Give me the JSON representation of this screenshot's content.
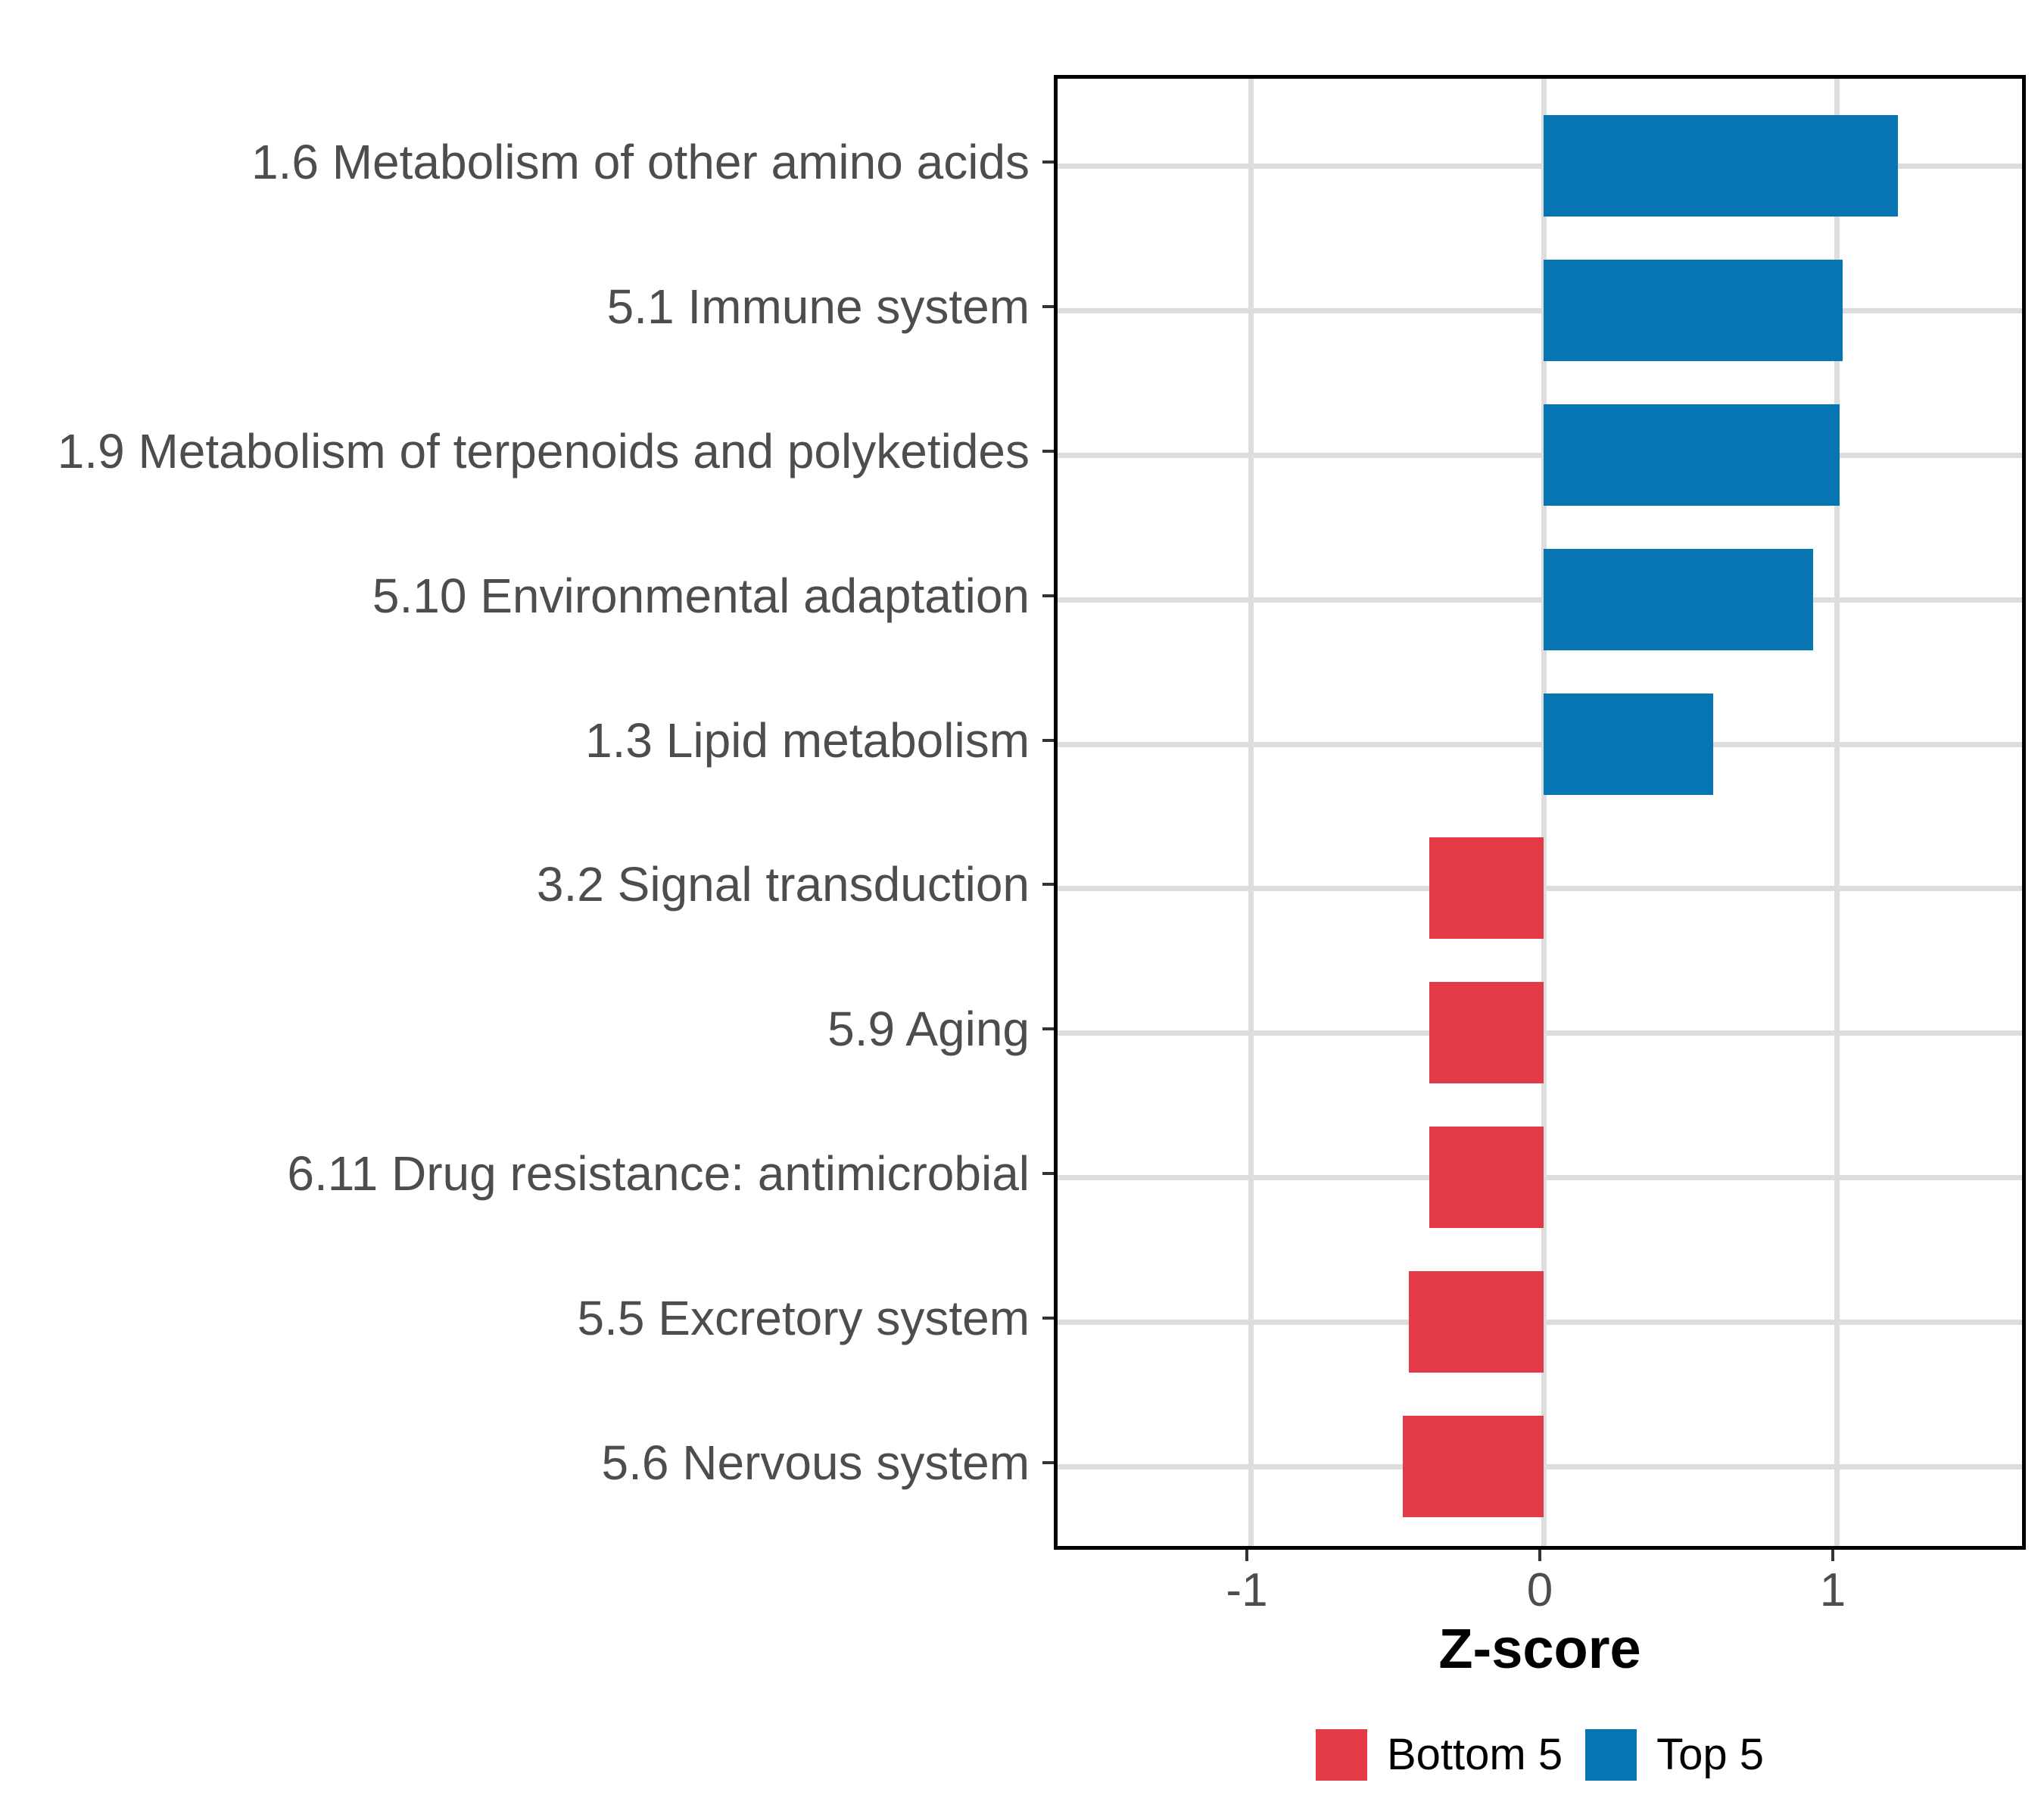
{
  "chart_data": {
    "type": "bar",
    "orientation": "horizontal",
    "title": "",
    "xlabel": "Z-score",
    "ylabel": "",
    "categories": [
      "1.6 Metabolism of other amino acids",
      "5.1 Immune system",
      "1.9 Metabolism of terpenoids and polyketides",
      "5.10 Environmental adaptation",
      "1.3 Lipid metabolism",
      "3.2 Signal transduction",
      "5.9 Aging",
      "6.11 Drug resistance: antimicrobial",
      "5.5 Excretory system",
      "5.6 Nervous system"
    ],
    "values": [
      1.21,
      1.02,
      1.01,
      0.92,
      0.58,
      -0.39,
      -0.39,
      -0.39,
      -0.46,
      -0.48
    ],
    "groups": [
      "Top 5",
      "Top 5",
      "Top 5",
      "Top 5",
      "Top 5",
      "Bottom 5",
      "Bottom 5",
      "Bottom 5",
      "Bottom 5",
      "Bottom 5"
    ],
    "x_ticks": [
      {
        "value": -1,
        "label": "-1"
      },
      {
        "value": 0,
        "label": "0"
      },
      {
        "value": 1,
        "label": "1"
      }
    ],
    "xlim": [
      -1.66,
      1.66
    ],
    "grid": {
      "vertical_major": true,
      "horizontal_category": true,
      "minor": false
    },
    "legend": {
      "position": "bottom",
      "entries": [
        {
          "label": "Bottom 5",
          "color": "#E43946"
        },
        {
          "label": "Top 5",
          "color": "#0775B1"
        }
      ]
    },
    "colors": {
      "top5": "#0775B1",
      "bottom5": "#E43946"
    },
    "theme": {
      "grid_color": "#DDDDDD",
      "axis_text_color": "#4D4D4D",
      "tick_color": "#333333",
      "panel_border_color": "#000000",
      "background": "#FFFFFF"
    }
  }
}
